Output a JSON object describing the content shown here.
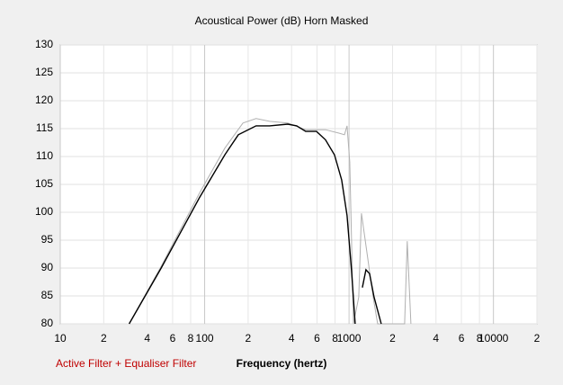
{
  "chart_data": {
    "type": "line",
    "title": "Acoustical Power (dB)   Horn    Masked",
    "x_label": "Frequency (hertz)",
    "annotation": "Active Filter + Equaliser Filter",
    "xscale": "log",
    "grid": true,
    "xlim": [
      10,
      20000
    ],
    "ylim": [
      80,
      130
    ],
    "yticks": [
      80,
      85,
      90,
      95,
      100,
      105,
      110,
      115,
      120,
      125,
      130
    ],
    "xticks": [
      10,
      {
        "value": 20,
        "label": "2"
      },
      {
        "value": 40,
        "label": "4"
      },
      {
        "value": 60,
        "label": "6"
      },
      {
        "value": 80,
        "label": "8"
      },
      100,
      {
        "value": 200,
        "label": "2"
      },
      {
        "value": 400,
        "label": "4"
      },
      {
        "value": 600,
        "label": "6"
      },
      {
        "value": 800,
        "label": "8"
      },
      1000,
      {
        "value": 2000,
        "label": "2"
      },
      {
        "value": 4000,
        "label": "4"
      },
      {
        "value": 6000,
        "label": "6"
      },
      {
        "value": 8000,
        "label": "8"
      },
      10000,
      {
        "value": 20000,
        "label": "2"
      }
    ],
    "series": [
      {
        "color": "#b0b0b0",
        "x": [
          30,
          50,
          92,
          138,
          184,
          227,
          282,
          376,
          501,
          687,
          850,
          929,
          969,
          1012,
          1072,
          1167,
          1218,
          1328,
          1469,
          1578,
          2427,
          2530,
          2680
        ],
        "values": [
          80,
          90.3,
          103.4,
          111.5,
          116,
          116.8,
          116.3,
          116,
          114.8,
          114.8,
          114.2,
          113.9,
          115.5,
          109,
          80,
          84.8,
          99.8,
          92.9,
          84.8,
          80,
          80,
          94.8,
          80
        ]
      },
      {
        "color": "#000000",
        "x": [
          30,
          50,
          92,
          138,
          171,
          227,
          282,
          376,
          434,
          501,
          595,
          687,
          793,
          889,
          969,
          1040,
          1103,
          1184,
          1236,
          1310,
          1387,
          1490,
          1671
        ],
        "values": [
          80,
          90,
          102.6,
          110.3,
          113.9,
          115.5,
          115.5,
          115.8,
          115.5,
          114.5,
          114.5,
          113,
          110.3,
          105.8,
          99.4,
          89.7,
          80,
          null,
          86.5,
          89.7,
          89,
          84.8,
          80
        ]
      }
    ]
  }
}
